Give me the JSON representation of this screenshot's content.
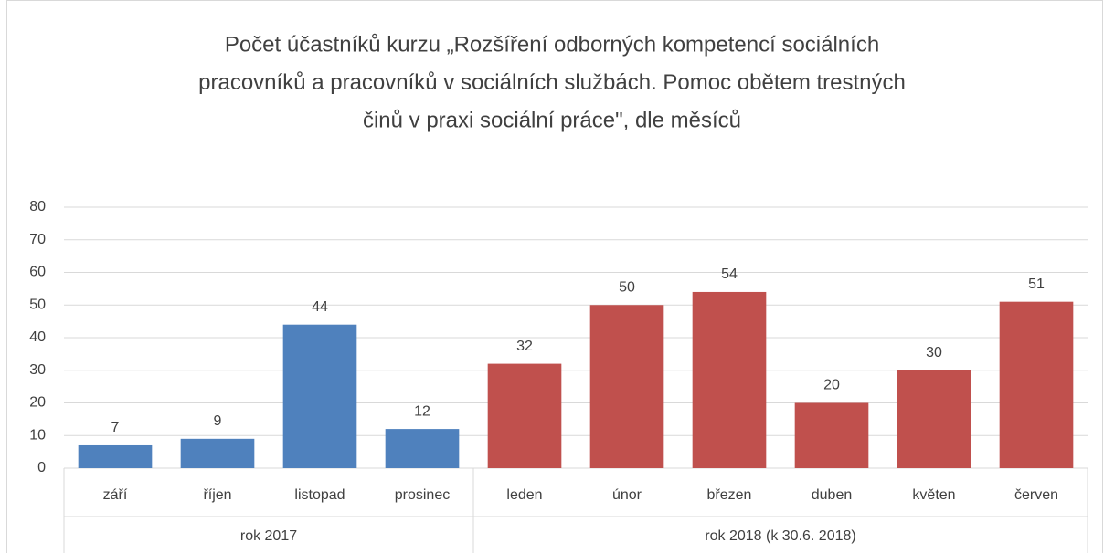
{
  "chart_data": {
    "type": "bar",
    "title": [
      "Počet účastníků kurzu „Rozšíření odborných kompetencí sociálních",
      "pracovníků a pracovníků v sociálních službách. Pomoc obětem trestných",
      "činů v praxi sociální práce\", dle měsíců"
    ],
    "categories": [
      "září",
      "říjen",
      "listopad",
      "prosinec",
      "leden",
      "únor",
      "březen",
      "duben",
      "květen",
      "červen"
    ],
    "series": [
      {
        "name": "rok 2017",
        "color": "#4f81bd",
        "values": [
          7,
          9,
          44,
          12,
          null,
          null,
          null,
          null,
          null,
          null
        ]
      },
      {
        "name": "rok 2018 (k 30.6. 2018)",
        "color": "#c0504d",
        "values": [
          null,
          null,
          null,
          null,
          32,
          50,
          54,
          20,
          30,
          51
        ]
      }
    ],
    "ylim": [
      0,
      80
    ],
    "yticks": [
      0,
      10,
      20,
      30,
      40,
      50,
      60,
      70,
      80
    ],
    "grid": true
  }
}
